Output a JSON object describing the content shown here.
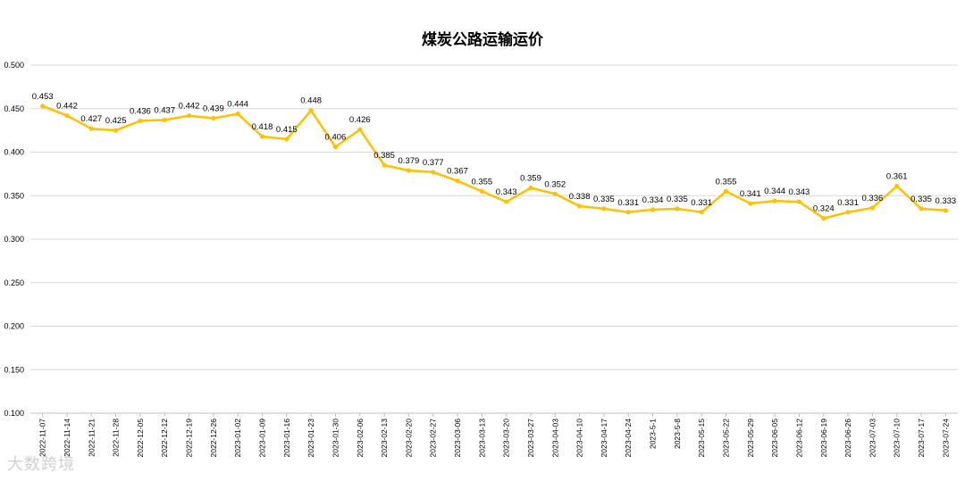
{
  "watermark": "大数跨境",
  "chart_data": {
    "type": "line",
    "title": "煤炭公路运输运价",
    "xlabel": "",
    "ylabel": "",
    "ylim": [
      0.1,
      0.5
    ],
    "y_ticks": [
      "0.100",
      "0.150",
      "0.200",
      "0.250",
      "0.300",
      "0.350",
      "0.400",
      "0.450",
      "0.500"
    ],
    "grid": true,
    "line_color": "#FFC000",
    "categories": [
      "2022-11-07",
      "2022-11-14",
      "2022-11-21",
      "2022-11-28",
      "2022-12-05",
      "2022-12-12",
      "2022-12-19",
      "2022-12-26",
      "2023-01-02",
      "2023-01-09",
      "2023-01-16",
      "2023-01-23",
      "2023-01-30",
      "2023-02-06",
      "2023-02-13",
      "2023-02-20",
      "2023-02-27",
      "2023-03-06",
      "2023-03-13",
      "2023-03-20",
      "2023-03-27",
      "2023-04-03",
      "2023-04-10",
      "2023-04-17",
      "2023-04-24",
      "2023-5-1",
      "2023-5-8",
      "2023-05-15",
      "2023-05-22",
      "2023-05-29",
      "2023-06-05",
      "2023-06-12",
      "2023-06-19",
      "2023-06-26",
      "2023-07-03",
      "2023-07-10",
      "2023-07-17",
      "2023-07-24"
    ],
    "values": [
      0.453,
      0.442,
      0.427,
      0.425,
      0.436,
      0.437,
      0.442,
      0.439,
      0.444,
      0.418,
      0.415,
      0.448,
      0.406,
      0.426,
      0.385,
      0.379,
      0.377,
      0.367,
      0.355,
      0.343,
      0.359,
      0.352,
      0.338,
      0.335,
      0.331,
      0.334,
      0.335,
      0.331,
      0.355,
      0.341,
      0.344,
      0.343,
      0.324,
      0.331,
      0.336,
      0.361,
      0.335,
      0.333
    ],
    "value_labels": [
      "0.453",
      "0.442",
      "0.427",
      "0.425",
      "0.436",
      "0.437",
      "0.442",
      "0.439",
      "0.444",
      "0.418",
      "0.415",
      "0.448",
      "0.406",
      "0.426",
      "0.385",
      "0.379",
      "0.377",
      "0.367",
      "0.355",
      "0.343",
      "0.359",
      "0.352",
      "0.338",
      "0.335",
      "0.331",
      "0.334",
      "0.335",
      "0.331",
      "0.355",
      "0.341",
      "0.344",
      "0.343",
      "0.324",
      "0.331",
      "0.336",
      "0.361",
      "0.335",
      "0.333"
    ]
  }
}
